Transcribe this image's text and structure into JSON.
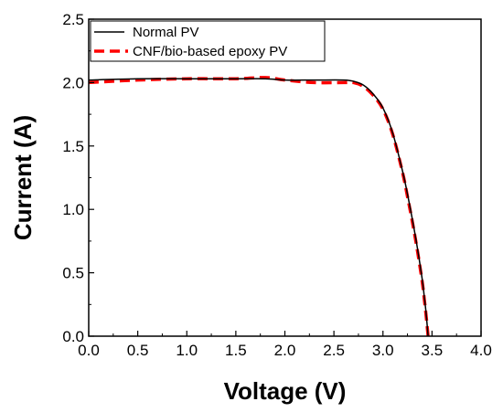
{
  "chart_data": {
    "type": "line",
    "title": "",
    "xlabel": "Voltage (V)",
    "ylabel": "Current (A)",
    "xlim": [
      0.0,
      4.0
    ],
    "ylim": [
      0.0,
      2.5
    ],
    "x_ticks": [
      0.0,
      0.5,
      1.0,
      1.5,
      2.0,
      2.5,
      3.0,
      3.5,
      4.0
    ],
    "y_ticks": [
      0.0,
      0.5,
      1.0,
      1.5,
      2.0,
      2.5
    ],
    "x_tick_labels": [
      "0.0",
      "0.5",
      "1.0",
      "1.5",
      "2.0",
      "2.5",
      "3.0",
      "3.5",
      "4.0"
    ],
    "y_tick_labels": [
      "0.0",
      "0.5",
      "1.0",
      "1.5",
      "2.0",
      "2.5"
    ],
    "grid": false,
    "legend_position": "top-left",
    "series": [
      {
        "name": "Normal PV",
        "color": "#000000",
        "line_style": "solid",
        "x": [
          0.0,
          0.5,
          1.0,
          1.5,
          1.8,
          2.0,
          2.3,
          2.6,
          2.7,
          2.8,
          2.9,
          3.0,
          3.1,
          3.2,
          3.25,
          3.3,
          3.35,
          3.4,
          3.42,
          3.44,
          3.46
        ],
        "y": [
          2.02,
          2.03,
          2.03,
          2.03,
          2.03,
          2.02,
          2.02,
          2.02,
          2.01,
          1.98,
          1.91,
          1.8,
          1.6,
          1.3,
          1.12,
          0.92,
          0.7,
          0.45,
          0.32,
          0.18,
          0.0
        ]
      },
      {
        "name": "CNF/bio-based epoxy PV",
        "color": "#ff0000",
        "line_style": "dashed",
        "x": [
          0.0,
          0.5,
          1.0,
          1.5,
          1.8,
          2.0,
          2.3,
          2.6,
          2.7,
          2.8,
          2.9,
          3.0,
          3.1,
          3.2,
          3.25,
          3.3,
          3.35,
          3.4,
          3.42,
          3.44,
          3.46
        ],
        "y": [
          2.0,
          2.02,
          2.03,
          2.03,
          2.04,
          2.02,
          2.0,
          2.0,
          2.0,
          1.97,
          1.9,
          1.79,
          1.59,
          1.29,
          1.1,
          0.9,
          0.68,
          0.43,
          0.3,
          0.16,
          0.0
        ]
      }
    ]
  }
}
